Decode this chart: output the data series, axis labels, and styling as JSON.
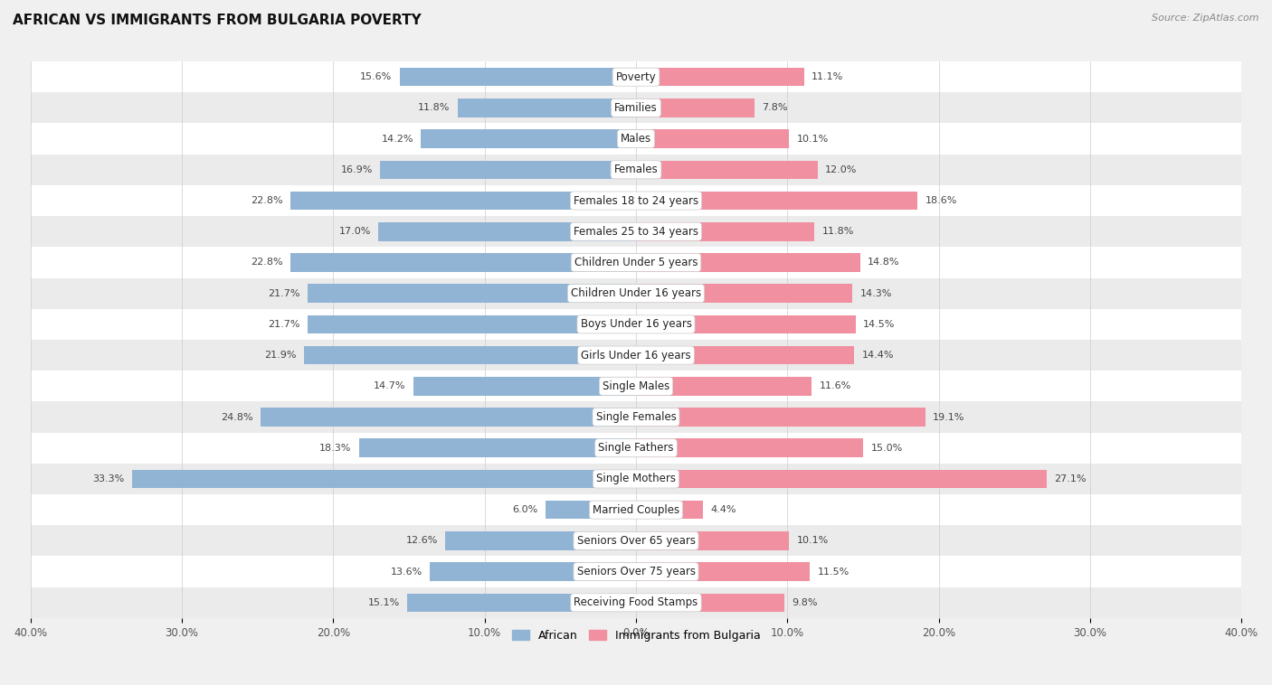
{
  "title": "AFRICAN VS IMMIGRANTS FROM BULGARIA POVERTY",
  "source": "Source: ZipAtlas.com",
  "categories": [
    "Poverty",
    "Families",
    "Males",
    "Females",
    "Females 18 to 24 years",
    "Females 25 to 34 years",
    "Children Under 5 years",
    "Children Under 16 years",
    "Boys Under 16 years",
    "Girls Under 16 years",
    "Single Males",
    "Single Females",
    "Single Fathers",
    "Single Mothers",
    "Married Couples",
    "Seniors Over 65 years",
    "Seniors Over 75 years",
    "Receiving Food Stamps"
  ],
  "african": [
    15.6,
    11.8,
    14.2,
    16.9,
    22.8,
    17.0,
    22.8,
    21.7,
    21.7,
    21.9,
    14.7,
    24.8,
    18.3,
    33.3,
    6.0,
    12.6,
    13.6,
    15.1
  ],
  "bulgaria": [
    11.1,
    7.8,
    10.1,
    12.0,
    18.6,
    11.8,
    14.8,
    14.3,
    14.5,
    14.4,
    11.6,
    19.1,
    15.0,
    27.1,
    4.4,
    10.1,
    11.5,
    9.8
  ],
  "african_color": "#92b4d4",
  "bulgaria_color": "#f090a0",
  "background_color": "#f0f0f0",
  "row_colors": [
    "#ffffff",
    "#ebebeb"
  ],
  "xlim": 40.0,
  "bar_height": 0.6,
  "legend_african": "African",
  "legend_bulgaria": "Immigrants from Bulgaria",
  "tick_label_0": "40.0%",
  "tick_label_10": "30.0%",
  "tick_label_20": "20.0%",
  "tick_label_30": "10.0%",
  "tick_label_40": "0.0%"
}
